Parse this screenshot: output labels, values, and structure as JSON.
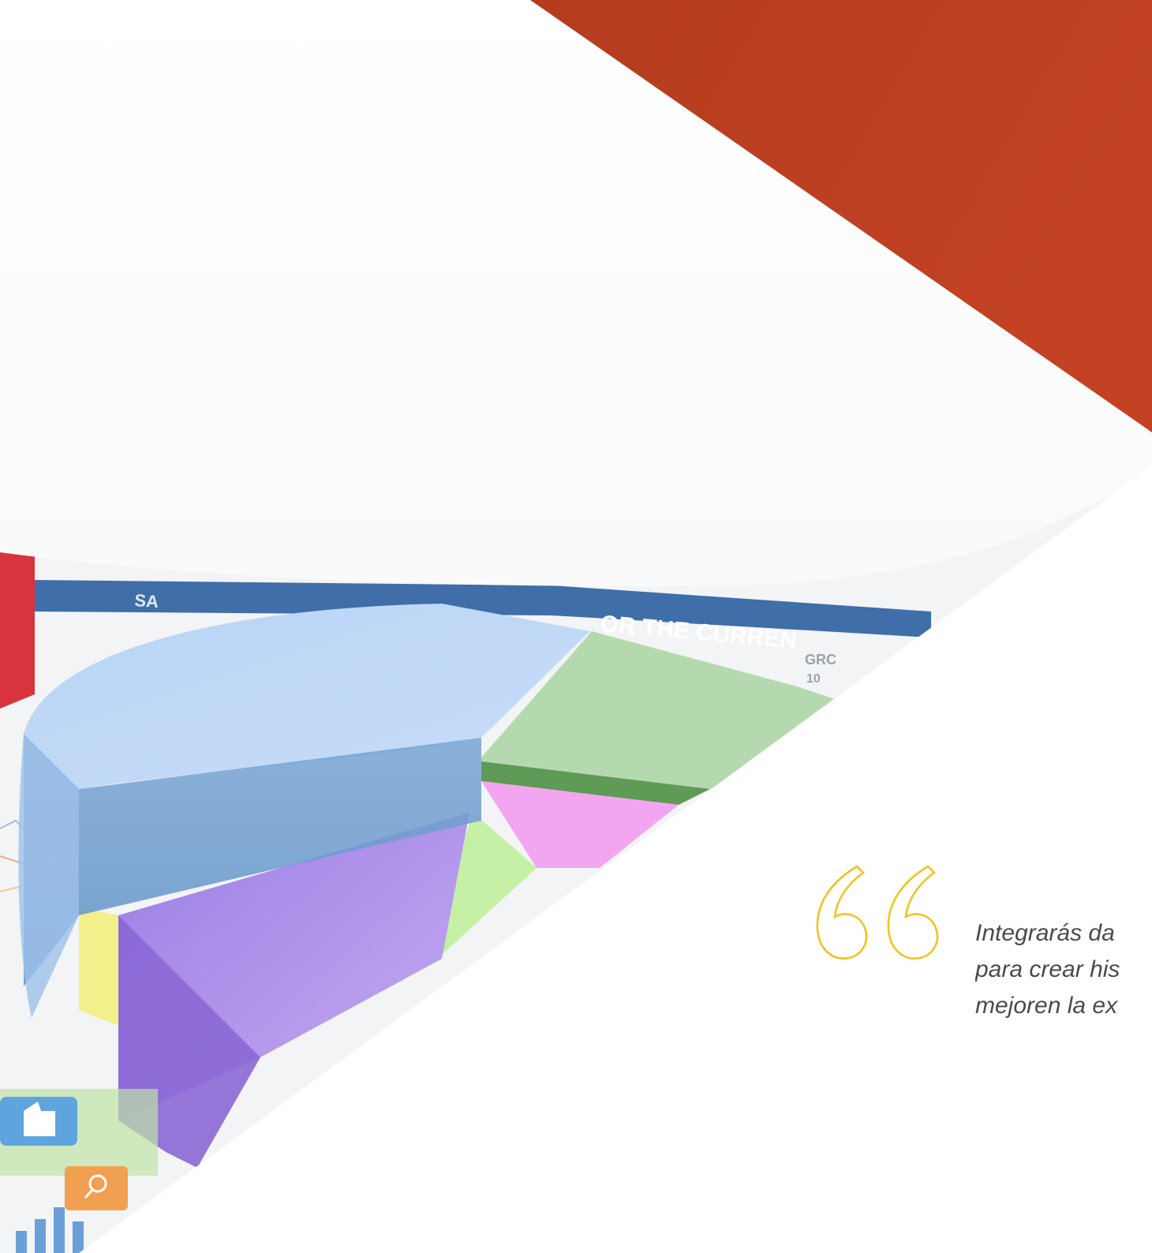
{
  "colors": {
    "banner": "#bc3e1f",
    "quote_mark": "#f2c318",
    "quote_text": "#4a4a4a"
  },
  "background_image": {
    "header_text_1": "SA",
    "header_text_2": "OR THE CURREN",
    "side_text_1": "GRC",
    "side_text_2": "10"
  },
  "quote": {
    "icon": "quote-marks-icon",
    "lines": [
      "Integrarás da",
      "para crear his",
      "mejoren la ex"
    ]
  }
}
